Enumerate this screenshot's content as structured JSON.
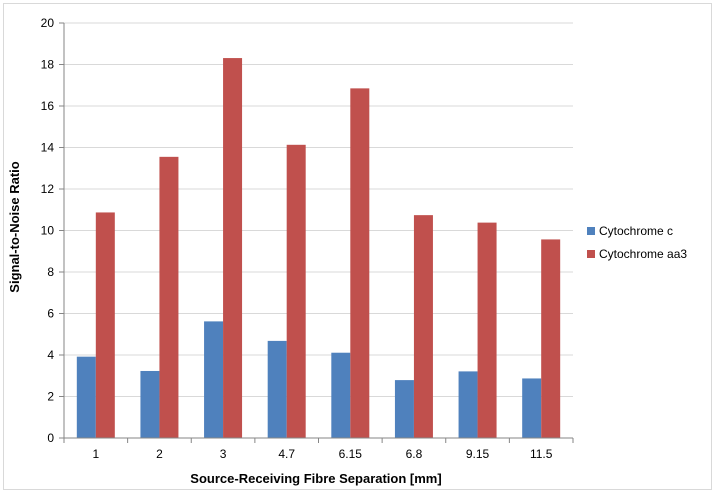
{
  "chart_data": {
    "type": "bar",
    "title": "",
    "xlabel": "Source-Receiving Fibre Separation [mm]",
    "ylabel": "Signal-to-Noise Ratio",
    "categories": [
      "1",
      "2",
      "3",
      "4.7",
      "6.15",
      "6.8",
      "9.15",
      "11.5"
    ],
    "series": [
      {
        "name": "Cytochrome c",
        "color": "#4f81bd",
        "values": [
          3.92,
          3.23,
          5.62,
          4.68,
          4.11,
          2.79,
          3.21,
          2.87
        ]
      },
      {
        "name": "Cytochrome aa3",
        "color": "#c0504d",
        "values": [
          10.87,
          13.55,
          18.31,
          14.13,
          16.85,
          10.74,
          10.38,
          9.57
        ]
      }
    ],
    "ylim": [
      0,
      20
    ],
    "yticks": [
      0,
      2,
      4,
      6,
      8,
      10,
      12,
      14,
      16,
      18,
      20
    ],
    "grid": true,
    "legend_position": "right"
  }
}
